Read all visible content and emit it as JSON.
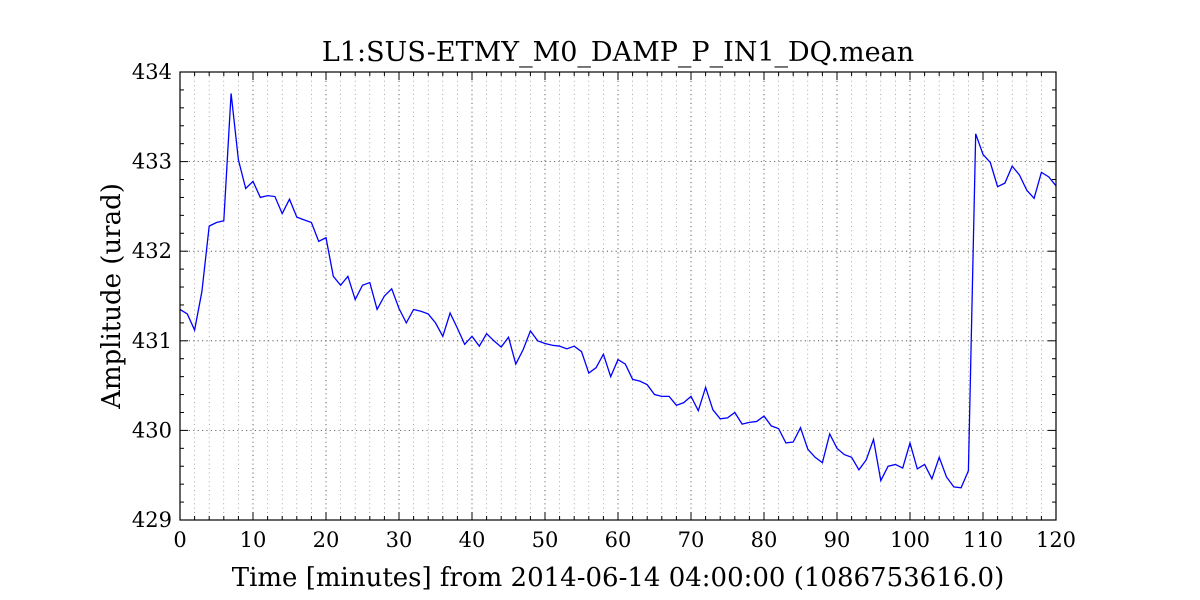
{
  "chart_data": {
    "type": "line",
    "title": "L1:SUS-ETMY_M0_DAMP_P_IN1_DQ.mean",
    "xlabel": "Time [minutes] from 2014-06-14 04:00:00 (1086753616.0)",
    "ylabel": "Amplitude (urad)",
    "xlim": [
      0,
      120
    ],
    "ylim": [
      429,
      434
    ],
    "xticks": [
      0,
      10,
      20,
      30,
      40,
      50,
      60,
      70,
      80,
      90,
      100,
      110,
      120
    ],
    "yticks": [
      429,
      430,
      431,
      432,
      433,
      434
    ],
    "grid": true,
    "series": [
      {
        "color": "#0000ff",
        "x": [
          0,
          1,
          2,
          3,
          4,
          5,
          6,
          7,
          8,
          9,
          10,
          11,
          12,
          13,
          14,
          15,
          16,
          17,
          18,
          19,
          20,
          21,
          22,
          23,
          24,
          25,
          26,
          27,
          28,
          29,
          30,
          31,
          32,
          33,
          34,
          35,
          36,
          37,
          38,
          39,
          40,
          41,
          42,
          43,
          44,
          45,
          46,
          47,
          48,
          49,
          50,
          51,
          52,
          53,
          54,
          55,
          56,
          57,
          58,
          59,
          60,
          61,
          62,
          63,
          64,
          65,
          66,
          67,
          68,
          69,
          70,
          71,
          72,
          73,
          74,
          75,
          76,
          77,
          78,
          79,
          80,
          81,
          82,
          83,
          84,
          85,
          86,
          87,
          88,
          89,
          90,
          91,
          92,
          93,
          94,
          95,
          96,
          97,
          98,
          99,
          100,
          101,
          102,
          103,
          104,
          105,
          106,
          107,
          108,
          109,
          110,
          111,
          112,
          113,
          114,
          115,
          116,
          117,
          118,
          119,
          120
        ],
        "y": [
          431.35,
          431.3,
          431.12,
          431.55,
          432.28,
          432.32,
          432.34,
          433.76,
          433.02,
          432.7,
          432.78,
          432.6,
          432.62,
          432.61,
          432.42,
          432.58,
          432.38,
          432.35,
          432.32,
          432.11,
          432.15,
          431.72,
          431.62,
          431.72,
          431.46,
          431.62,
          431.65,
          431.35,
          431.5,
          431.58,
          431.36,
          431.2,
          431.35,
          431.33,
          431.3,
          431.2,
          431.05,
          431.31,
          431.14,
          430.96,
          431.05,
          430.94,
          431.08,
          431.0,
          430.93,
          431.04,
          430.74,
          430.9,
          431.11,
          431.0,
          430.97,
          430.95,
          430.94,
          430.91,
          430.94,
          430.88,
          430.64,
          430.7,
          430.85,
          430.6,
          430.79,
          430.74,
          430.57,
          430.55,
          430.51,
          430.4,
          430.38,
          430.38,
          430.28,
          430.31,
          430.38,
          430.22,
          430.48,
          430.23,
          430.13,
          430.14,
          430.2,
          430.07,
          430.09,
          430.1,
          430.16,
          430.05,
          430.02,
          429.86,
          429.87,
          430.03,
          429.79,
          429.7,
          429.64,
          429.96,
          429.8,
          429.73,
          429.7,
          429.56,
          429.67,
          429.9,
          429.44,
          429.6,
          429.62,
          429.58,
          429.86,
          429.57,
          429.62,
          429.46,
          429.7,
          429.48,
          429.37,
          429.36,
          429.55,
          433.31,
          433.08,
          432.99,
          432.72,
          432.76,
          432.95,
          432.85,
          432.68,
          432.59,
          432.88,
          432.83,
          432.73
        ]
      }
    ]
  }
}
